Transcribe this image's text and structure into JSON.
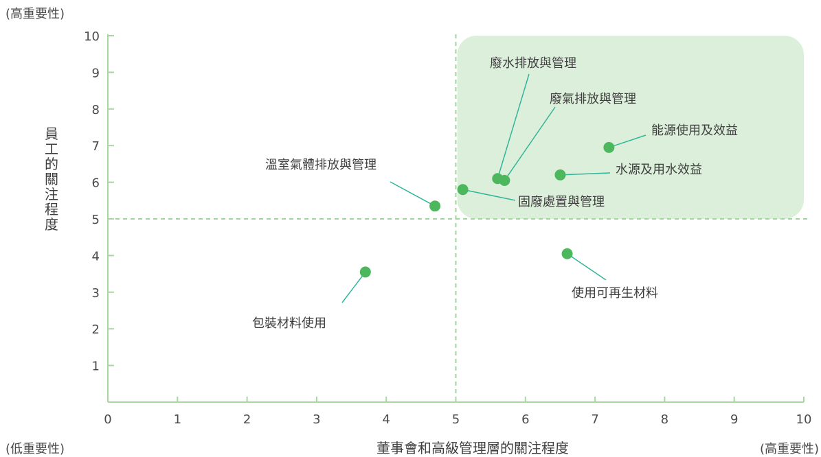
{
  "colors": {
    "axis": "#a8d8a0",
    "highlight_fill": "#dcefdb",
    "point": "#4cb75c",
    "leader": "#2fb59a",
    "threshold": "#9fd59a",
    "text": "#3f3f3f"
  },
  "chart_data": {
    "type": "scatter",
    "xlabel": "董事會和高級管理層的關注程度",
    "ylabel": "員工的關注程度",
    "xlim": [
      0,
      10
    ],
    "ylim": [
      0,
      10
    ],
    "x_ticks": [
      "0",
      "1",
      "2",
      "3",
      "4",
      "5",
      "6",
      "7",
      "8",
      "9",
      "10"
    ],
    "y_ticks": [
      "1",
      "2",
      "3",
      "4",
      "5",
      "6",
      "7",
      "8",
      "9",
      "10"
    ],
    "thresholds": {
      "x": 5,
      "y": 5
    },
    "highlight_region": {
      "x": [
        5,
        10
      ],
      "y": [
        5,
        10
      ]
    },
    "corner_labels": {
      "y_high": "(高重要性)",
      "x_low": "(低重要性)",
      "x_high": "(高重要性)"
    },
    "grid": false,
    "legend": "none",
    "points": [
      {
        "label": "廢水排放與管理",
        "x": 5.6,
        "y": 6.1
      },
      {
        "label": "廢氣排放與管理",
        "x": 5.7,
        "y": 6.05
      },
      {
        "label": "能源使用及效益",
        "x": 7.2,
        "y": 6.95
      },
      {
        "label": "水源及用水效益",
        "x": 6.5,
        "y": 6.2
      },
      {
        "label": "固廢處置與管理",
        "x": 5.1,
        "y": 5.8
      },
      {
        "label": "溫室氣體排放與管理",
        "x": 4.7,
        "y": 5.35
      },
      {
        "label": "使用可再生材料",
        "x": 6.6,
        "y": 4.05
      },
      {
        "label": "包裝材料使用",
        "x": 3.7,
        "y": 3.55
      }
    ]
  }
}
